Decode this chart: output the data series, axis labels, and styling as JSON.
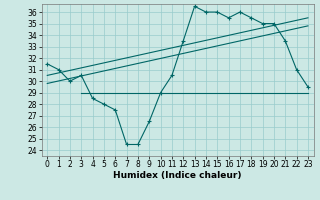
{
  "xlabel": "Humidex (Indice chaleur)",
  "bg_color": "#cce8e4",
  "line_color": "#006666",
  "grid_color": "#99cccc",
  "xlim": [
    -0.5,
    23.5
  ],
  "ylim": [
    23.5,
    36.7
  ],
  "yticks": [
    24,
    25,
    26,
    27,
    28,
    29,
    30,
    31,
    32,
    33,
    34,
    35,
    36
  ],
  "xticks": [
    0,
    1,
    2,
    3,
    4,
    5,
    6,
    7,
    8,
    9,
    10,
    11,
    12,
    13,
    14,
    15,
    16,
    17,
    18,
    19,
    20,
    21,
    22,
    23
  ],
  "series_main": {
    "x": [
      0,
      1,
      2,
      3,
      4,
      5,
      6,
      7,
      8,
      9,
      10,
      11,
      12,
      13,
      14,
      15,
      16,
      17,
      18,
      19,
      20,
      21,
      22,
      23
    ],
    "y": [
      31.5,
      31.0,
      30.0,
      30.5,
      28.5,
      28.0,
      27.5,
      24.5,
      24.5,
      26.5,
      29.0,
      30.5,
      33.5,
      36.5,
      36.0,
      36.0,
      35.5,
      36.0,
      35.5,
      35.0,
      35.0,
      33.5,
      31.0,
      29.5
    ]
  },
  "series_flat": {
    "x": [
      3,
      9,
      19,
      23
    ],
    "y": [
      29.0,
      29.0,
      29.0,
      29.0
    ]
  },
  "series_diag1": {
    "x": [
      0,
      23
    ],
    "y": [
      30.5,
      35.5
    ]
  },
  "series_diag2": {
    "x": [
      0,
      23
    ],
    "y": [
      29.8,
      34.8
    ]
  },
  "tick_fontsize": 5.5,
  "xlabel_fontsize": 6.5
}
